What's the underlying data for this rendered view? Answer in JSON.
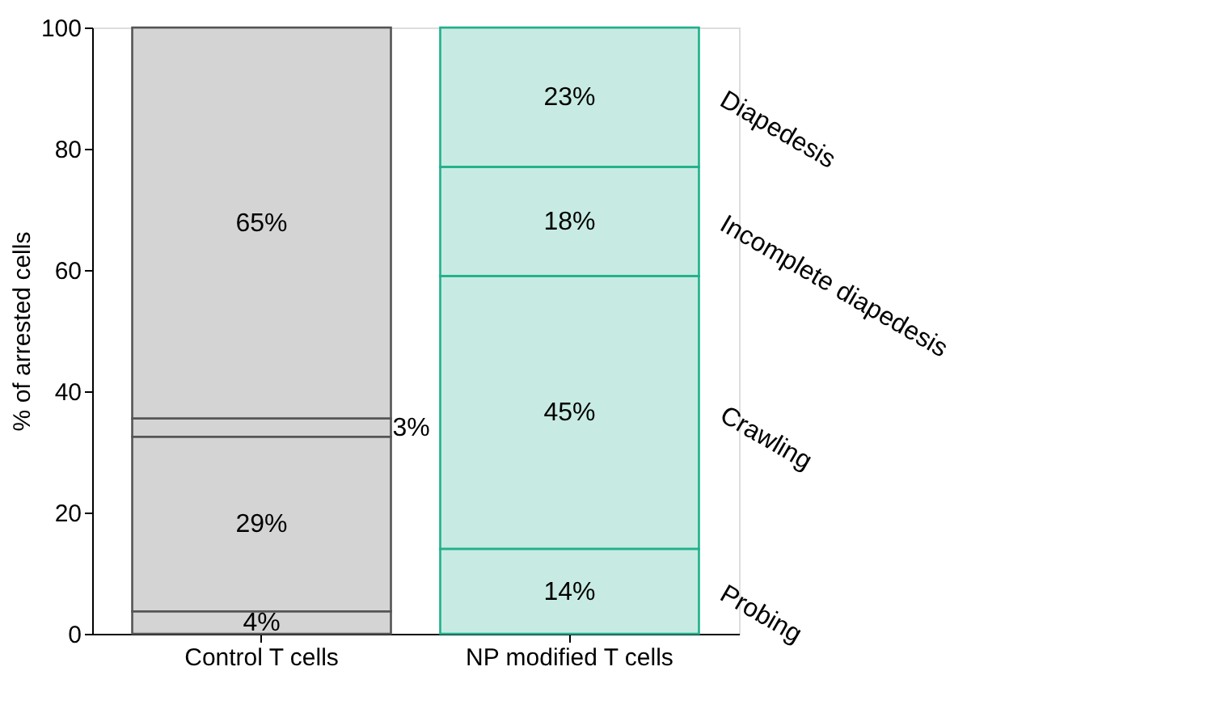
{
  "chart_data": {
    "type": "bar",
    "stacked": true,
    "ylabel": "% of arrested cells",
    "categories": [
      "Control T cells",
      "NP modified T cells"
    ],
    "series": [
      {
        "name": "Probing",
        "colors": [
          "#555555",
          "#1fb08c"
        ],
        "values": [
          3.7,
          14
        ],
        "value_labels": [
          "4%",
          "14%"
        ]
      },
      {
        "name": "Crawling",
        "colors": [
          "#555555",
          "#1fb08c"
        ],
        "values": [
          28.8,
          45
        ],
        "value_labels": [
          "29%",
          "45%"
        ]
      },
      {
        "name": "Incomplete diapedesis",
        "colors": [
          "#555555",
          "#1fb08c"
        ],
        "values": [
          3,
          18
        ],
        "value_labels": [
          "3%",
          "18%"
        ]
      },
      {
        "name": "Diapedesis",
        "colors": [
          "#555555",
          "#1fb08c"
        ],
        "values": [
          64.5,
          23
        ],
        "value_labels": [
          "65%",
          "23%"
        ]
      }
    ],
    "ylim": [
      0,
      100
    ],
    "yticks": [
      0,
      20,
      40,
      60,
      80,
      100
    ],
    "grid": false,
    "legend": false
  }
}
